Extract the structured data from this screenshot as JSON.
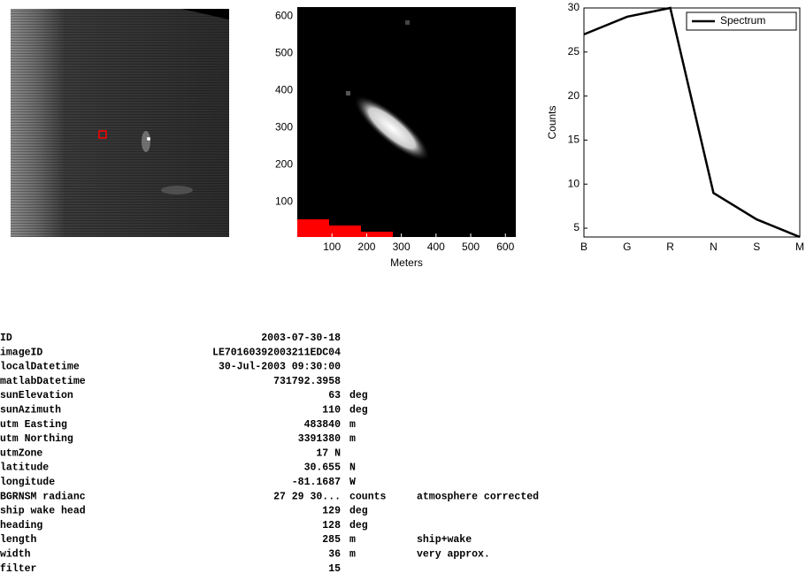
{
  "chart_data": [
    {
      "type": "image",
      "xlabel": "Meters",
      "xlim": [
        0,
        630
      ],
      "ylim": [
        5,
        625
      ],
      "xticks": [
        100,
        200,
        300,
        400,
        500,
        600
      ],
      "yticks": [
        100,
        200,
        300,
        400,
        500,
        600
      ]
    },
    {
      "type": "line",
      "ylabel": "Counts",
      "categories": [
        "B",
        "G",
        "R",
        "N",
        "S",
        "M"
      ],
      "series": [
        {
          "name": "Spectrum",
          "color": "#000000",
          "values": [
            27,
            29,
            30,
            9,
            6,
            4
          ]
        }
      ],
      "ylim": [
        4,
        30
      ],
      "yticks": [
        5,
        10,
        15,
        20,
        25,
        30
      ],
      "legend": "upper right"
    }
  ],
  "table": {
    "rows": [
      [
        "ID",
        "2003-07-30-18"
      ],
      [
        "imageID",
        "LE70160392003211EDC04"
      ],
      [
        "localDatetime",
        "30-Jul-2003 09:30:00"
      ],
      [
        "matlabDatetime",
        "731792.3958"
      ],
      [
        "sunElevation",
        "63",
        "deg"
      ],
      [
        "sunAzimuth",
        "110",
        "deg"
      ],
      [
        "utm Easting",
        "483840",
        "m"
      ],
      [
        "utm Northing",
        "3391380",
        "m"
      ],
      [
        "utmZone",
        "17 N"
      ],
      [
        "latitude",
        "30.655",
        "N"
      ],
      [
        "longitude",
        "-81.1687",
        "W"
      ],
      [
        "BGRNSM radianc",
        "27 29 30...",
        "counts",
        "atmosphere corrected"
      ],
      [
        "ship wake head",
        "129",
        "deg"
      ],
      [
        "heading",
        "128",
        "deg"
      ],
      [
        "length",
        "285",
        "m",
        "ship+wake"
      ],
      [
        "width",
        "36",
        "m",
        "very approx."
      ],
      [
        "filter",
        "15"
      ]
    ]
  }
}
